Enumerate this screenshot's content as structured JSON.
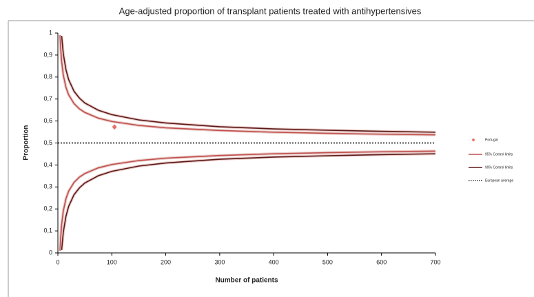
{
  "chart_data": {
    "type": "funnel",
    "title": "Age-adjusted proportion of transplant patients treated with antihypertensives",
    "x_label": "Number of patients",
    "y_label": "Proportion",
    "x": [
      4,
      5,
      7,
      10,
      15,
      20,
      30,
      40,
      50,
      75,
      100,
      150,
      200,
      300,
      400,
      500,
      600,
      700
    ],
    "series": [
      {
        "name": "95% Control limits",
        "color": "#c0504d",
        "upper": [
          0.99,
          0.938,
          0.87,
          0.81,
          0.753,
          0.719,
          0.679,
          0.655,
          0.639,
          0.613,
          0.598,
          0.58,
          0.569,
          0.557,
          0.549,
          0.544,
          0.54,
          0.537
        ],
        "lower": [
          0.01,
          0.062,
          0.13,
          0.19,
          0.247,
          0.281,
          0.321,
          0.345,
          0.361,
          0.387,
          0.402,
          0.42,
          0.431,
          0.443,
          0.451,
          0.456,
          0.46,
          0.463
        ]
      },
      {
        "name": "99% Control limits",
        "color": "#5a1a1a",
        "upper": [
          null,
          null,
          0.987,
          0.907,
          0.833,
          0.788,
          0.735,
          0.704,
          0.682,
          0.649,
          0.629,
          0.605,
          0.591,
          0.574,
          0.564,
          0.558,
          0.553,
          0.549
        ],
        "lower": [
          null,
          null,
          0.013,
          0.093,
          0.167,
          0.212,
          0.265,
          0.296,
          0.318,
          0.351,
          0.371,
          0.395,
          0.409,
          0.426,
          0.436,
          0.442,
          0.447,
          0.451
        ]
      }
    ],
    "points": [
      {
        "name": "Portugal",
        "color": "#e8706a",
        "x": 105,
        "y": 0.573
      }
    ],
    "reference": {
      "name": "European average",
      "value": 0.5,
      "color": "#000000"
    },
    "xlim": [
      0,
      700
    ],
    "xticks": [
      0,
      100,
      200,
      300,
      400,
      500,
      600,
      700
    ],
    "ylim": [
      0,
      1
    ],
    "yticks": [
      0,
      {
        "value": 0.1,
        "label": "0,1"
      },
      {
        "value": 0.2,
        "label": "0,2"
      },
      {
        "value": 0.3,
        "label": "0,3"
      },
      {
        "value": 0.4,
        "label": "0,4"
      },
      {
        "value": 0.5,
        "label": "0,5"
      },
      {
        "value": 0.6,
        "label": "0,6"
      },
      {
        "value": 0.7,
        "label": "0,7"
      },
      {
        "value": 0.8,
        "label": "0,8"
      },
      {
        "value": 0.9,
        "label": "0,9"
      },
      1
    ],
    "legend": "right"
  }
}
